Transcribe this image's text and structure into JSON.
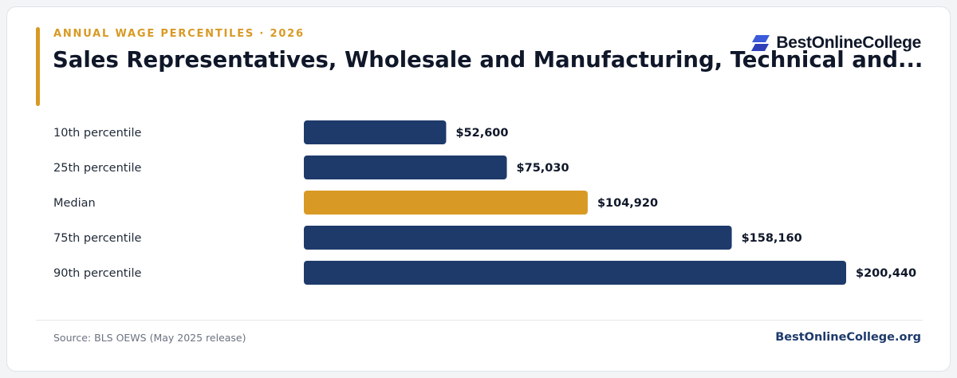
{
  "header": {
    "eyebrow": "ANNUAL WAGE PERCENTILES · 2026",
    "title": "Sales Representatives, Wholesale and Manufacturing, Technical and...",
    "brand_name": "BestOnlineCollege",
    "brand_icon": "stacked-parallelogram-logo-icon"
  },
  "colors": {
    "accent": "#d89a25",
    "bar": "#1e3a6b",
    "highlight": "#d89a25",
    "title": "#0f1729"
  },
  "chart_data": {
    "type": "bar",
    "orientation": "horizontal",
    "categories": [
      "10th percentile",
      "25th percentile",
      "Median",
      "75th percentile",
      "90th percentile"
    ],
    "values": [
      52600,
      75030,
      104920,
      158160,
      200440
    ],
    "value_labels": [
      "$52,600",
      "$75,030",
      "$104,920",
      "$158,160",
      "$200,440"
    ],
    "highlight_category": "Median",
    "xlim": [
      0,
      200440
    ],
    "grid": false,
    "legend": "none"
  },
  "footer": {
    "source": "Source: BLS OEWS (May 2025 release)",
    "site": "BestOnlineCollege.org"
  }
}
